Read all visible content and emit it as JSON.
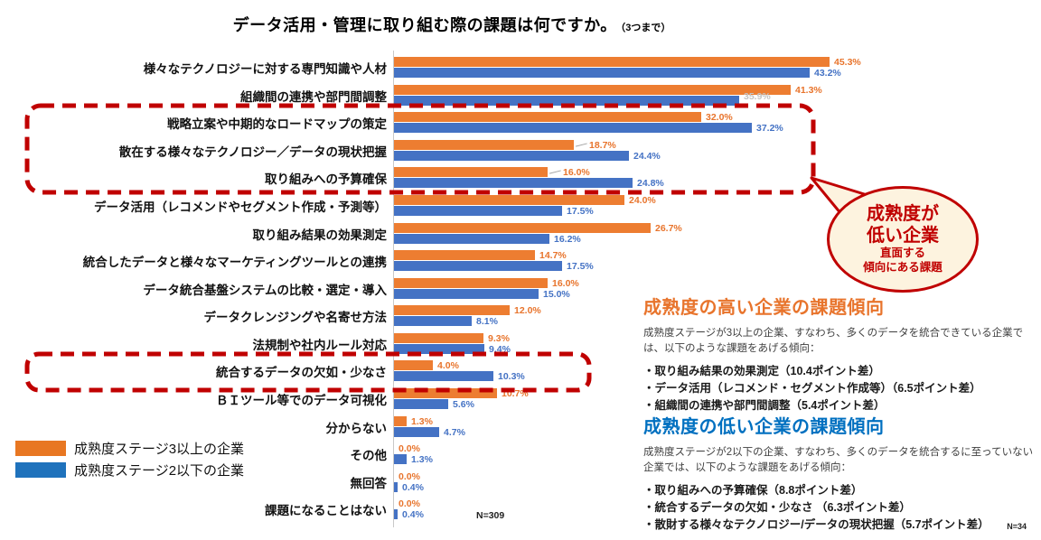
{
  "title": {
    "main": "データ活用・管理に取り組む際の課題は何ですか。",
    "suffix": "（3つまで）"
  },
  "chart_data": {
    "type": "bar",
    "orientation": "horizontal",
    "unit": "%",
    "xlim": [
      0,
      50
    ],
    "grid": false,
    "legend_position": "bottom-left",
    "n_label": "N=309",
    "categories": [
      "様々なテクノロジーに対する専門知識や人材",
      "組織間の連携や部門間調整",
      "戦略立案や中期的なロードマップの策定",
      "散在する様々なテクノロジー／データの現状把握",
      "取り組みへの予算確保",
      "データ活用（レコメンドやセグメント作成・予測等）",
      "取り組み結果の効果測定",
      "統合したデータと様々なマーケティングツールとの連携",
      "データ統合基盤システムの比較・選定・導入",
      "データクレンジングや名寄せ方法",
      "法規制や社内ルール対応",
      "統合するデータの欠如・少なさ",
      "ＢＩツール等でのデータ可視化",
      "分からない",
      "その他",
      "無回答",
      "課題になることはない"
    ],
    "series": [
      {
        "name": "成熟度ステージ3以上の企業",
        "color": "#ED7D31",
        "label_color": "#E8742C",
        "values": [
          45.3,
          41.3,
          32.0,
          18.7,
          16.0,
          24.0,
          26.7,
          14.7,
          16.0,
          12.0,
          9.3,
          4.0,
          10.7,
          1.3,
          0.0,
          0.0,
          0.0
        ]
      },
      {
        "name": "成熟度ステージ2以下の企業",
        "color": "#4472C4",
        "label_color": "#4472C4",
        "values": [
          43.2,
          35.9,
          37.2,
          24.4,
          24.8,
          17.5,
          16.2,
          17.5,
          15.0,
          8.1,
          9.4,
          10.3,
          5.6,
          4.7,
          1.3,
          0.4,
          0.4
        ]
      }
    ],
    "label_overrides": {
      "muted": [
        {
          "series": 1,
          "index": 1
        }
      ],
      "leader": [
        {
          "series": 0,
          "index": 3
        },
        {
          "series": 0,
          "index": 4
        }
      ]
    }
  },
  "legend": {
    "items": [
      {
        "label": "成熟度ステージ3以上の企業",
        "color": "#E87722"
      },
      {
        "label": "成熟度ステージ2以下の企業",
        "color": "#1F72BC"
      }
    ]
  },
  "annotations": {
    "highlight_color": "#C00000",
    "callout": {
      "fill": "#FDF3DF",
      "lines": [
        "成熟度が",
        "低い企業",
        "直面する",
        "傾向にある課題"
      ]
    }
  },
  "panels": {
    "high": {
      "heading": "成熟度の高い企業の課題傾向",
      "body": "成熟度ステージが3以上の企業、すなわち、多くのデータを統合できている企業では、以下のような課題をあげる傾向：",
      "bullets": [
        "・取り組み結果の効果測定（10.4ポイント差）",
        "・データ活用（レコメンド・セグメント作成等）（6.5ポイント差）",
        "・組織間の連携や部門間調整（5.4ポイント差）"
      ]
    },
    "low": {
      "heading": "成熟度の低い企業の課題傾向",
      "body": "成熟度ステージが2以下の企業、すなわち、多くのデータを統合するに至っていない企業では、以下のような課題をあげる傾向：",
      "bullets": [
        "・取り組みへの予算確保（8.8ポイント差）",
        "・統合するデータの欠如・少なさ （6.3ポイント差）",
        "・散財する様々なテクノロジー/データの現状把握（5.7ポイント差）"
      ]
    }
  },
  "footer": {
    "page_note": "N=34"
  }
}
